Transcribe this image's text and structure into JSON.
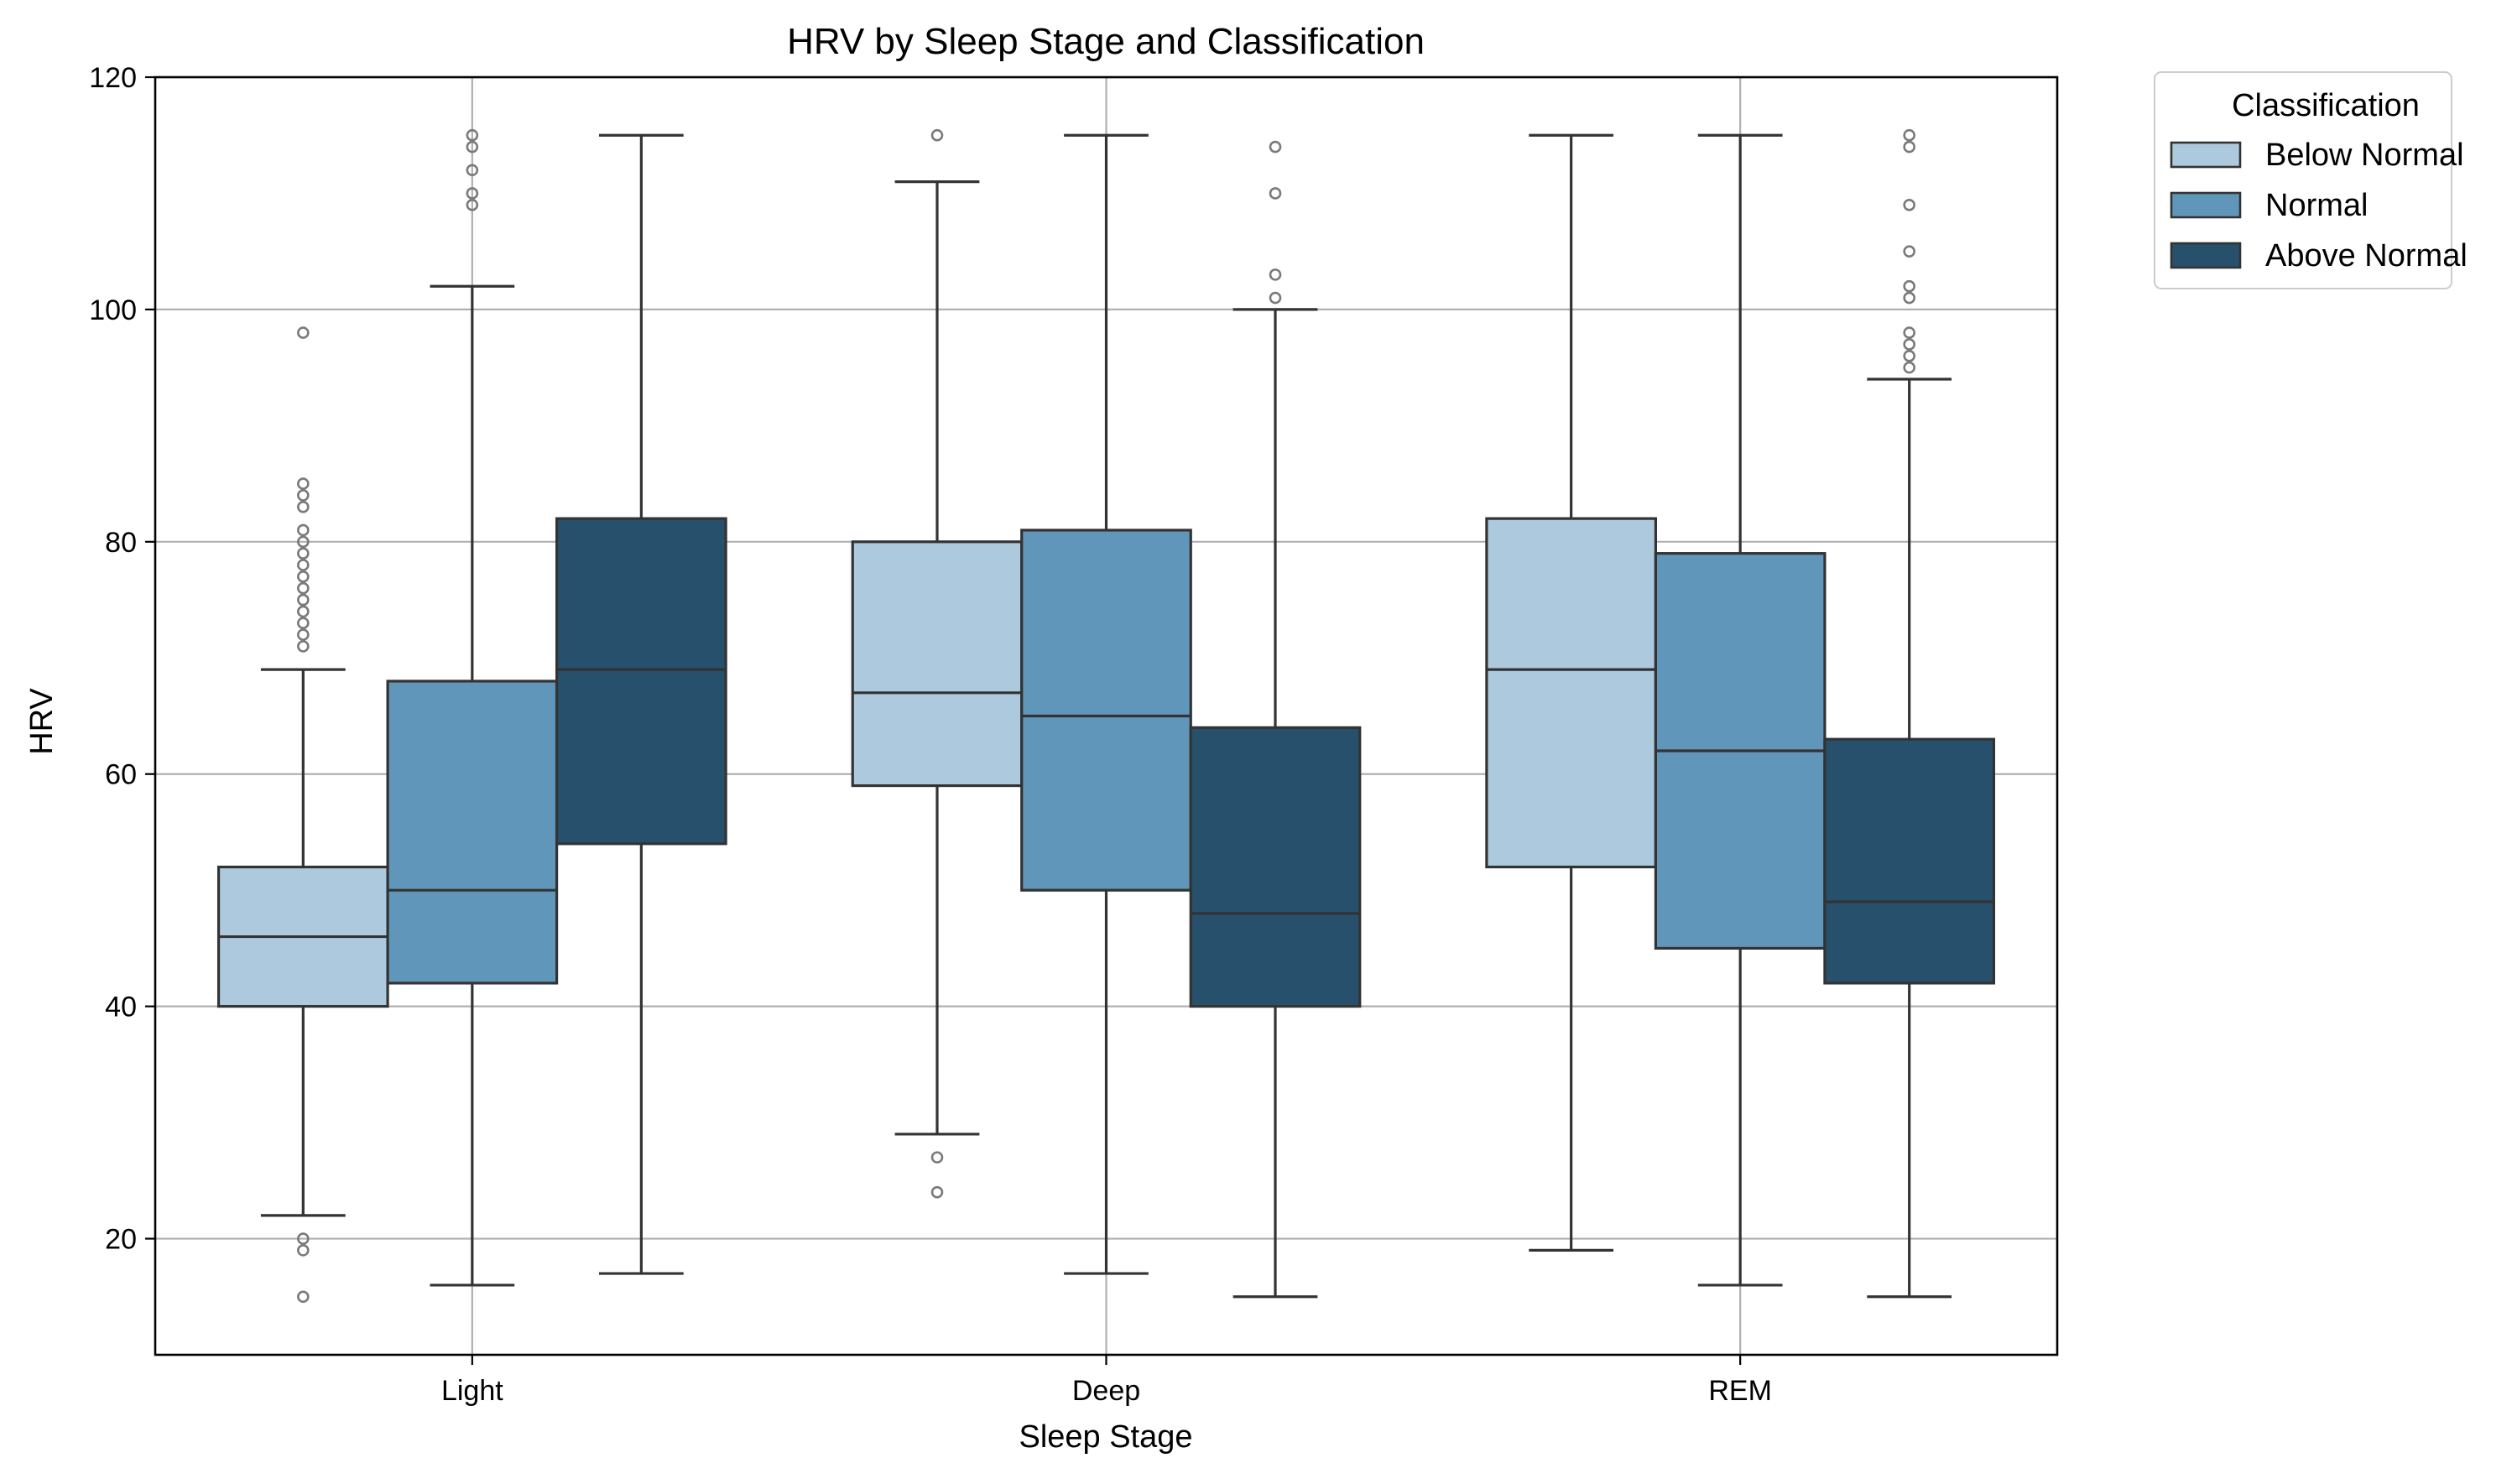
{
  "chart_data": {
    "type": "box",
    "title": "HRV by Sleep Stage and Classification",
    "xlabel": "Sleep Stage",
    "ylabel": "HRV",
    "ylim": [
      10,
      120
    ],
    "yticks": [
      20,
      40,
      60,
      80,
      100,
      120
    ],
    "grid": true,
    "legend": {
      "title": "Classification",
      "placement": "outside-top-right"
    },
    "categories": [
      "Light",
      "Deep",
      "REM"
    ],
    "series": [
      {
        "name": "Below Normal",
        "color": "#adc9dd",
        "boxes": [
          {
            "whisker_low": 22,
            "q1": 40,
            "median": 46,
            "q3": 52,
            "whisker_high": 69,
            "outliers": [
              15,
              19,
              20,
              71,
              72,
              73,
              74,
              75,
              76,
              77,
              78,
              79,
              80,
              81,
              83,
              84,
              85,
              98
            ]
          },
          {
            "whisker_low": 29,
            "q1": 59,
            "median": 67,
            "q3": 80,
            "whisker_high": 111,
            "outliers": [
              24,
              27,
              115
            ]
          },
          {
            "whisker_low": 19,
            "q1": 52,
            "median": 69,
            "q3": 82,
            "whisker_high": 115,
            "outliers": []
          }
        ]
      },
      {
        "name": "Normal",
        "color": "#6096ba",
        "boxes": [
          {
            "whisker_low": 16,
            "q1": 42,
            "median": 50,
            "q3": 68,
            "whisker_high": 102,
            "outliers": [
              109,
              110,
              112,
              114,
              115
            ]
          },
          {
            "whisker_low": 17,
            "q1": 50,
            "median": 65,
            "q3": 81,
            "whisker_high": 115,
            "outliers": []
          },
          {
            "whisker_low": 16,
            "q1": 45,
            "median": 62,
            "q3": 79,
            "whisker_high": 115,
            "outliers": []
          }
        ]
      },
      {
        "name": "Above Normal",
        "color": "#27506d",
        "boxes": [
          {
            "whisker_low": 17,
            "q1": 54,
            "median": 69,
            "q3": 82,
            "whisker_high": 115,
            "outliers": []
          },
          {
            "whisker_low": 15,
            "q1": 40,
            "median": 48,
            "q3": 64,
            "whisker_high": 100,
            "outliers": [
              101,
              103,
              110,
              114
            ]
          },
          {
            "whisker_low": 15,
            "q1": 42,
            "median": 49,
            "q3": 63,
            "whisker_high": 94,
            "outliers": [
              95,
              96,
              97,
              98,
              101,
              102,
              105,
              109,
              114,
              115
            ]
          }
        ]
      }
    ]
  }
}
